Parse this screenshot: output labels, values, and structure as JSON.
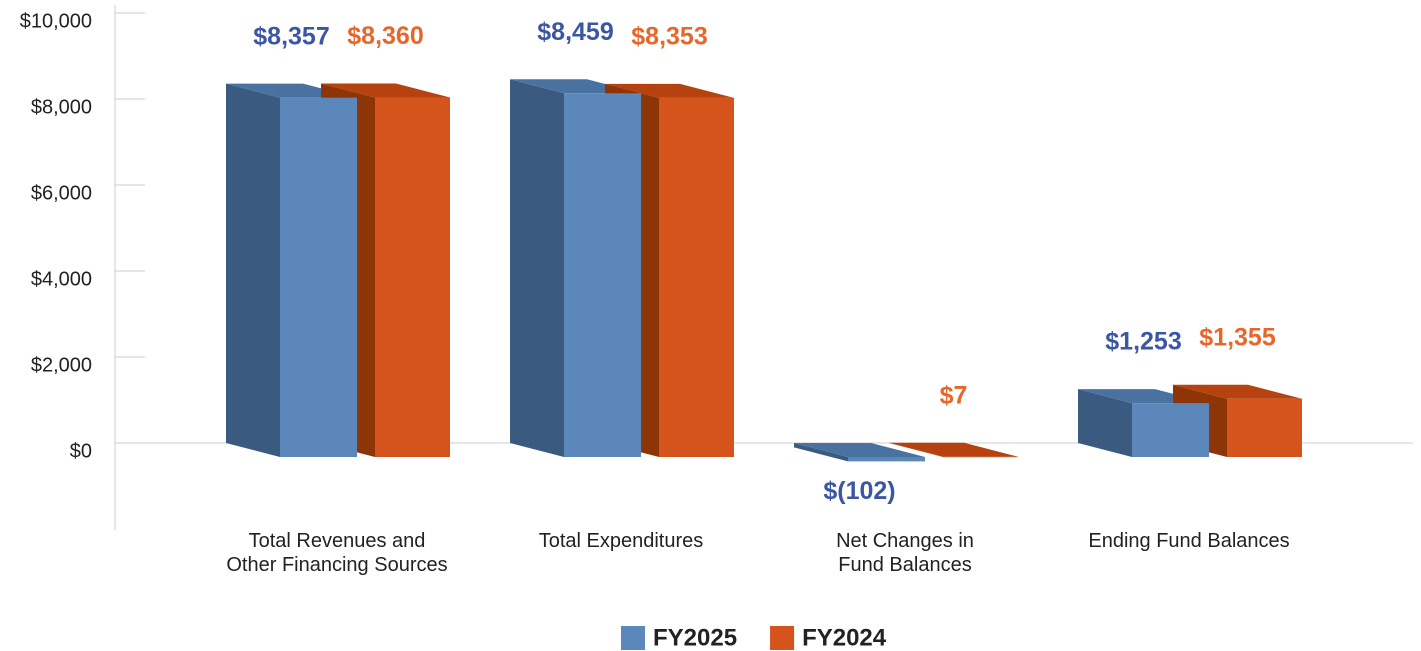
{
  "chart_data": {
    "type": "bar3d",
    "categories": [
      "Total Revenues and\nOther Financing Sources",
      "Total Expenditures",
      "Net Changes in\nFund Balances",
      "Ending Fund Balances"
    ],
    "series": [
      {
        "name": "FY2025",
        "color": "#5b87bb",
        "side_color": "#3a5a80",
        "top_color": "#4a72a0",
        "label_color": "#3b57a3",
        "values": [
          8357,
          8459,
          -102,
          1253
        ],
        "value_labels": [
          "$8,357",
          "$8,459",
          "$(102)",
          "$1,253"
        ]
      },
      {
        "name": "FY2024",
        "color": "#d5541c",
        "side_color": "#8e3508",
        "top_color": "#b5420f",
        "label_color": "#e8662a",
        "values": [
          8360,
          8353,
          7,
          1355
        ],
        "value_labels": [
          "$8,360",
          "$8,353",
          "$7",
          "$1,355"
        ]
      }
    ],
    "ylim": [
      -2000,
      10000
    ],
    "yticks": [
      {
        "value": 0,
        "label": "$0"
      },
      {
        "value": 2000,
        "label": "$2,000"
      },
      {
        "value": 4000,
        "label": "$4,000"
      },
      {
        "value": 6000,
        "label": "$6,000"
      },
      {
        "value": 8000,
        "label": "$8,000"
      },
      {
        "value": 10000,
        "label": "$10,000"
      }
    ],
    "legend": "bottom"
  }
}
